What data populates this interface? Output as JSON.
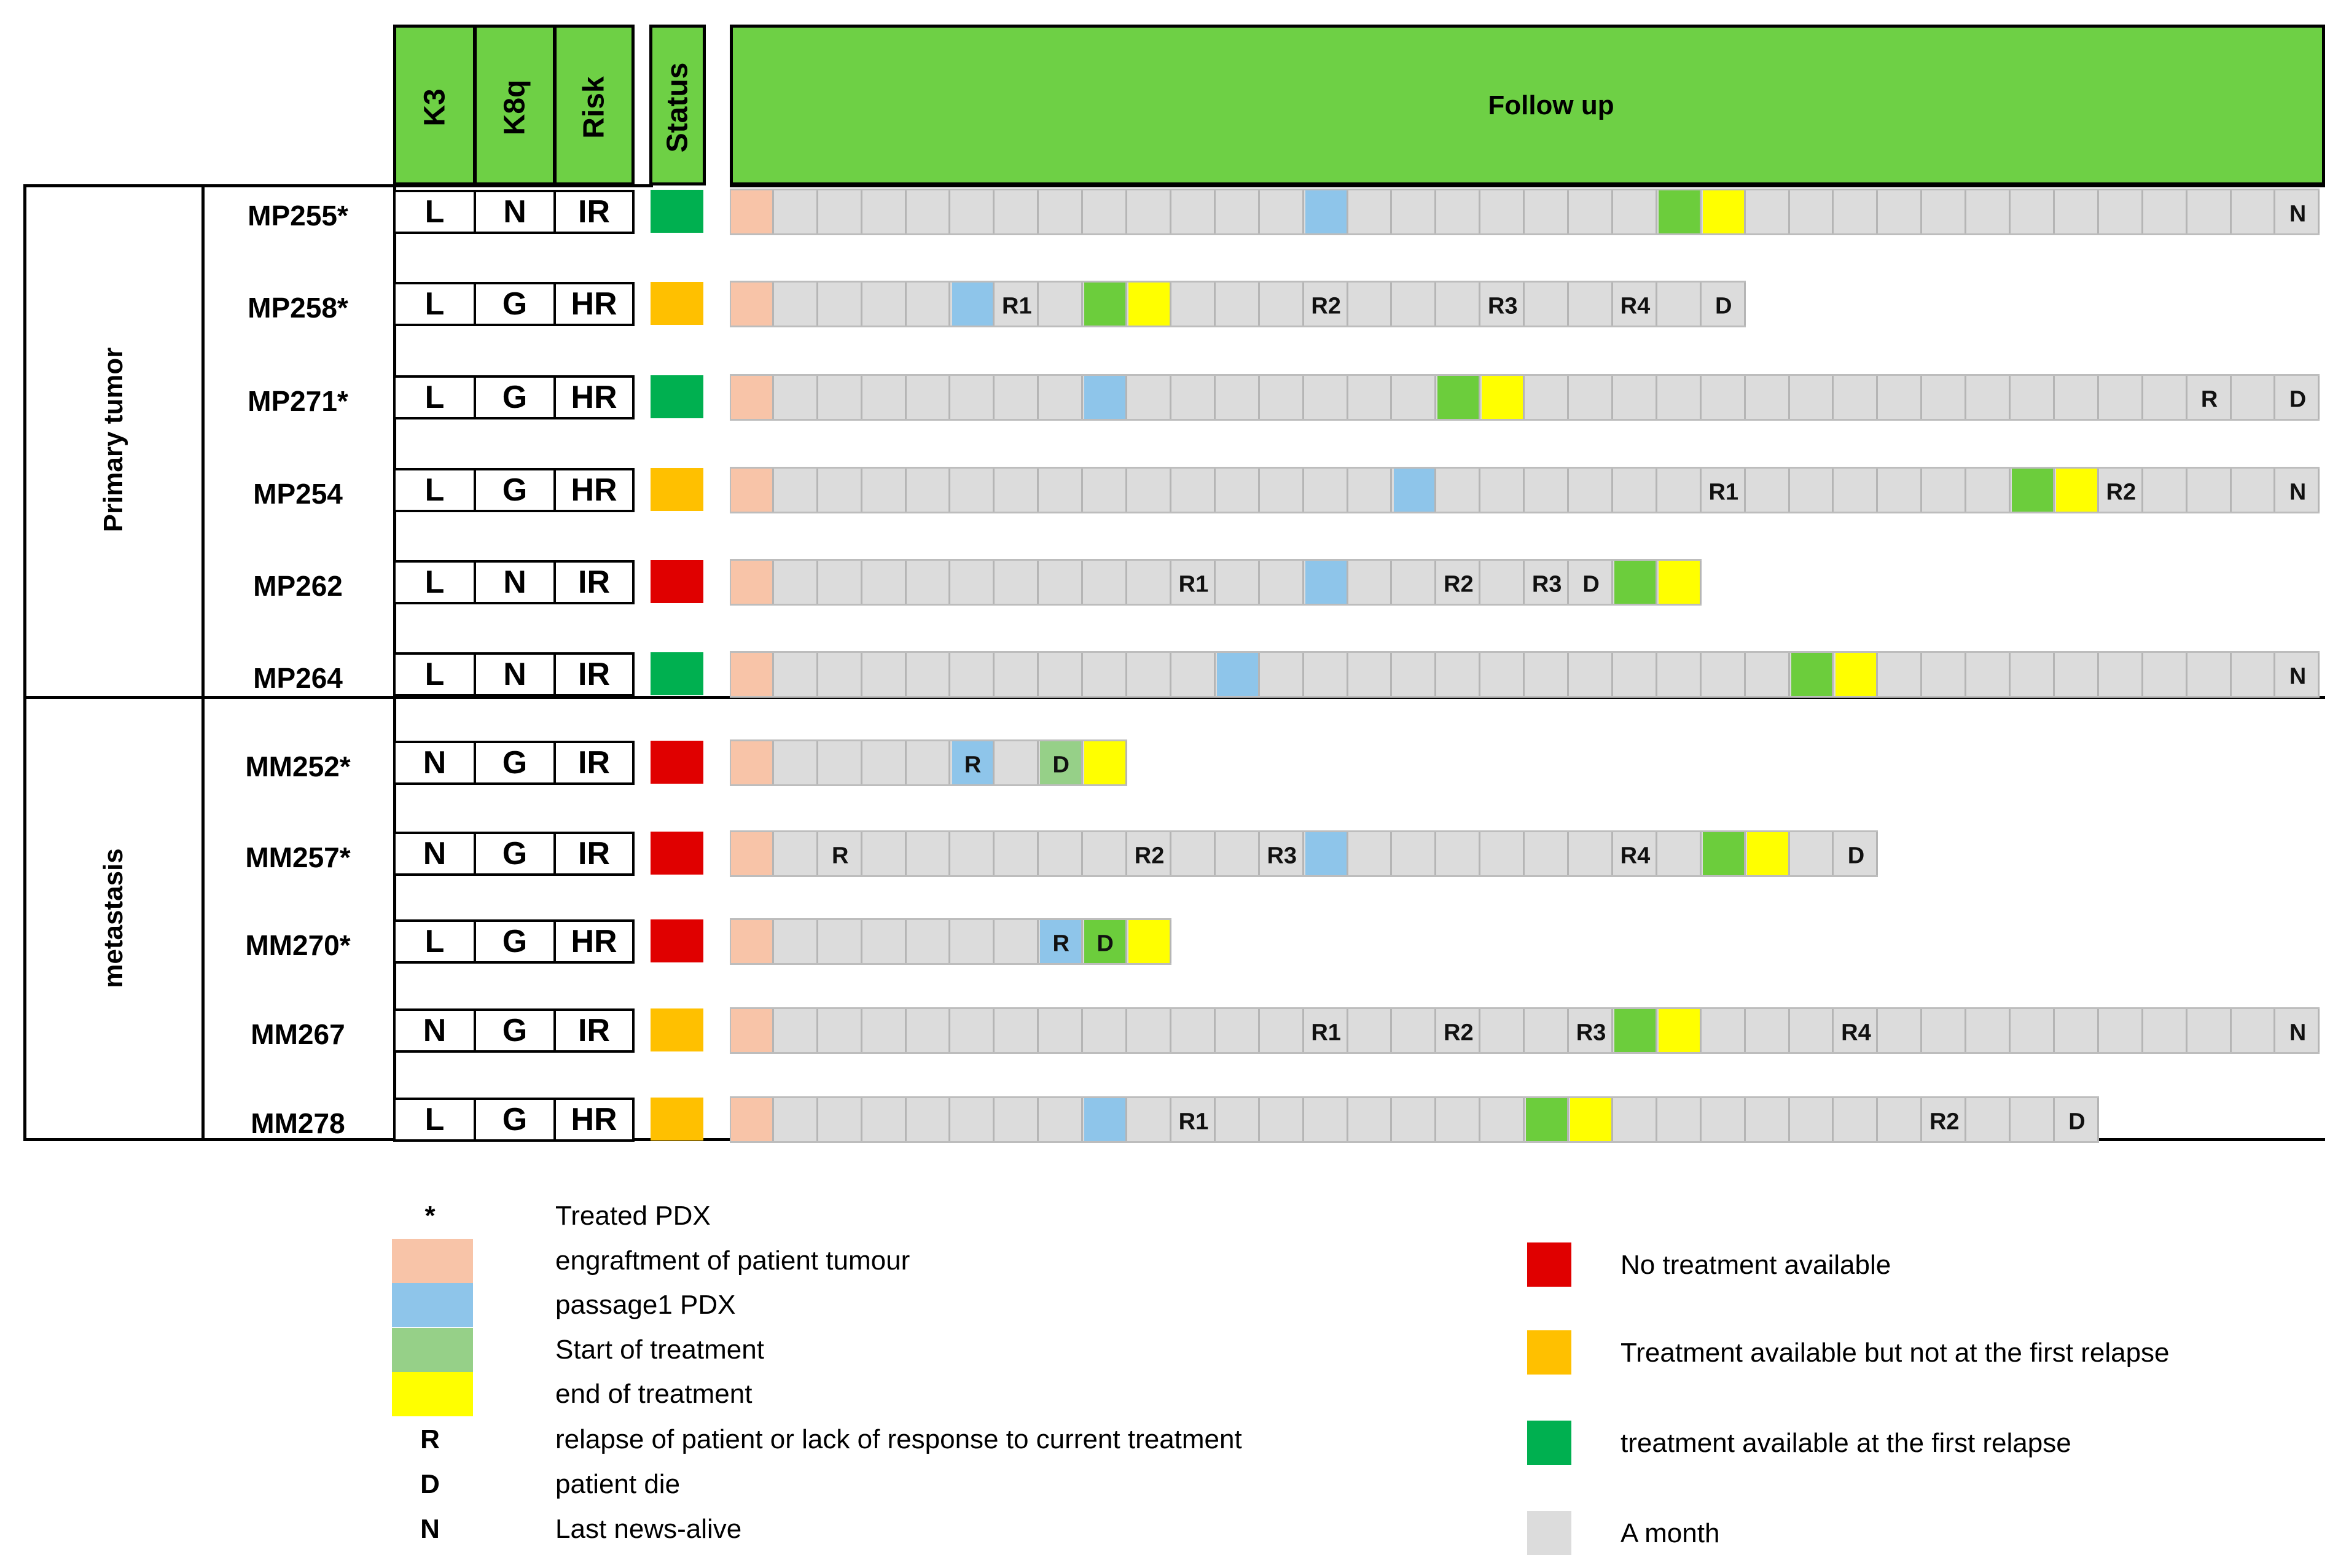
{
  "headers": {
    "k3": "K3",
    "k8q": "K8q",
    "risk": "Risk",
    "status": "Status",
    "follow_up": "Follow up"
  },
  "groups": {
    "primary": "Primary tumor",
    "metastasis": "metastasis"
  },
  "colors": {
    "header_green": "#6ed045",
    "engraftment": "#f8c4a8",
    "passage1": "#8ec5ea",
    "start_treatment_inrow": "#6ccd3c",
    "start_treatment_legend": "#96d088",
    "end_treatment": "#ffff00",
    "month": "#dcdcdc",
    "status_red": "#e00000",
    "status_orange": "#ffc000",
    "status_green": "#00b050"
  },
  "rows": [
    {
      "id": "MP255*",
      "group": "primary",
      "k3": "L",
      "k8q": "N",
      "risk": "IR",
      "status": "green",
      "months": 36,
      "cells": [
        {
          "m": 0,
          "t": "engraftment"
        },
        {
          "m": 13,
          "t": "passage1"
        },
        {
          "m": 21,
          "t": "start"
        },
        {
          "m": 22,
          "t": "end"
        }
      ],
      "labels": [
        {
          "m": 35,
          "text": "N"
        }
      ]
    },
    {
      "id": "MP258*",
      "group": "primary",
      "k3": "L",
      "k8q": "G",
      "risk": "HR",
      "status": "orange",
      "months": 23,
      "cells": [
        {
          "m": 0,
          "t": "engraftment"
        },
        {
          "m": 5,
          "t": "passage1"
        },
        {
          "m": 8,
          "t": "start"
        },
        {
          "m": 9,
          "t": "end"
        }
      ],
      "labels": [
        {
          "m": 6,
          "text": "R1"
        },
        {
          "m": 13,
          "text": "R2"
        },
        {
          "m": 17,
          "text": "R3"
        },
        {
          "m": 20,
          "text": "R4"
        },
        {
          "m": 22,
          "text": "D"
        }
      ]
    },
    {
      "id": "MP271*",
      "group": "primary",
      "k3": "L",
      "k8q": "G",
      "risk": "HR",
      "status": "green",
      "months": 36,
      "cells": [
        {
          "m": 0,
          "t": "engraftment"
        },
        {
          "m": 8,
          "t": "passage1"
        },
        {
          "m": 16,
          "t": "start"
        },
        {
          "m": 17,
          "t": "end"
        }
      ],
      "labels": [
        {
          "m": 33,
          "text": "R"
        },
        {
          "m": 35,
          "text": "D"
        }
      ]
    },
    {
      "id": "MP254",
      "group": "primary",
      "k3": "L",
      "k8q": "G",
      "risk": "HR",
      "status": "orange",
      "months": 36,
      "cells": [
        {
          "m": 0,
          "t": "engraftment"
        },
        {
          "m": 15,
          "t": "passage1"
        },
        {
          "m": 29,
          "t": "start"
        },
        {
          "m": 30,
          "t": "end"
        }
      ],
      "labels": [
        {
          "m": 22,
          "text": "R1"
        },
        {
          "m": 31,
          "text": "R2"
        },
        {
          "m": 35,
          "text": "N"
        }
      ]
    },
    {
      "id": "MP262",
      "group": "primary",
      "k3": "L",
      "k8q": "N",
      "risk": "IR",
      "status": "red",
      "months": 22,
      "cells": [
        {
          "m": 0,
          "t": "engraftment"
        },
        {
          "m": 13,
          "t": "passage1"
        },
        {
          "m": 20,
          "t": "start"
        },
        {
          "m": 21,
          "t": "end"
        }
      ],
      "labels": [
        {
          "m": 10,
          "text": "R1"
        },
        {
          "m": 16,
          "text": "R2"
        },
        {
          "m": 18,
          "text": "R3"
        },
        {
          "m": 19,
          "text": "D"
        }
      ]
    },
    {
      "id": "MP264",
      "group": "primary",
      "k3": "L",
      "k8q": "N",
      "risk": "IR",
      "status": "green",
      "months": 36,
      "cells": [
        {
          "m": 0,
          "t": "engraftment"
        },
        {
          "m": 11,
          "t": "passage1"
        },
        {
          "m": 24,
          "t": "start"
        },
        {
          "m": 25,
          "t": "end"
        }
      ],
      "labels": [
        {
          "m": 35,
          "text": "N"
        }
      ]
    },
    {
      "id": "MM252*",
      "group": "metastasis",
      "k3": "N",
      "k8q": "G",
      "risk": "IR",
      "status": "red",
      "months": 9,
      "cells": [
        {
          "m": 0,
          "t": "engraftment"
        },
        {
          "m": 5,
          "t": "passage1"
        },
        {
          "m": 7,
          "t": "start_light"
        },
        {
          "m": 8,
          "t": "end"
        }
      ],
      "labels": [
        {
          "m": 5,
          "text": "R"
        },
        {
          "m": 7,
          "text": "D"
        }
      ]
    },
    {
      "id": "MM257*",
      "group": "metastasis",
      "k3": "N",
      "k8q": "G",
      "risk": "IR",
      "status": "red",
      "months": 26,
      "cells": [
        {
          "m": 0,
          "t": "engraftment"
        },
        {
          "m": 13,
          "t": "passage1"
        },
        {
          "m": 22,
          "t": "start"
        },
        {
          "m": 23,
          "t": "end"
        }
      ],
      "labels": [
        {
          "m": 2,
          "text": "R"
        },
        {
          "m": 9,
          "text": "R2"
        },
        {
          "m": 12,
          "text": "R3"
        },
        {
          "m": 20,
          "text": "R4"
        },
        {
          "m": 25,
          "text": "D"
        }
      ]
    },
    {
      "id": "MM270*",
      "group": "metastasis",
      "k3": "L",
      "k8q": "G",
      "risk": "HR",
      "status": "red",
      "months": 10,
      "cells": [
        {
          "m": 0,
          "t": "engraftment"
        },
        {
          "m": 7,
          "t": "passage1"
        },
        {
          "m": 8,
          "t": "start"
        },
        {
          "m": 9,
          "t": "end"
        }
      ],
      "labels": [
        {
          "m": 7,
          "text": "R"
        },
        {
          "m": 8,
          "text": "D"
        }
      ]
    },
    {
      "id": "MM267",
      "group": "metastasis",
      "k3": "N",
      "k8q": "G",
      "risk": "IR",
      "status": "orange",
      "months": 36,
      "cells": [
        {
          "m": 0,
          "t": "engraftment"
        },
        {
          "m": 20,
          "t": "start"
        },
        {
          "m": 21,
          "t": "end"
        }
      ],
      "labels": [
        {
          "m": 13,
          "text": "R1"
        },
        {
          "m": 16,
          "text": "R2"
        },
        {
          "m": 19,
          "text": "R3"
        },
        {
          "m": 25,
          "text": "R4"
        },
        {
          "m": 35,
          "text": "N"
        }
      ]
    },
    {
      "id": "MM278",
      "group": "metastasis",
      "k3": "L",
      "k8q": "G",
      "risk": "HR",
      "status": "orange",
      "months": 31,
      "cells": [
        {
          "m": 0,
          "t": "engraftment"
        },
        {
          "m": 8,
          "t": "passage1"
        },
        {
          "m": 18,
          "t": "start"
        },
        {
          "m": 19,
          "t": "end"
        }
      ],
      "labels": [
        {
          "m": 10,
          "text": "R1"
        },
        {
          "m": 27,
          "text": "R2"
        },
        {
          "m": 30,
          "text": "D"
        }
      ]
    }
  ],
  "legend_left": [
    {
      "symbol": "*",
      "text": "Treated PDX"
    },
    {
      "swatch": "engraftment",
      "text": "engraftment of  patient tumour"
    },
    {
      "swatch": "passage1",
      "text": "passage1 PDX"
    },
    {
      "swatch": "start_treatment_legend",
      "text": "Start of treatment"
    },
    {
      "swatch": "end_treatment",
      "text": "end of treatment"
    },
    {
      "symbol": "R",
      "text": "relapse of patient or lack of response to current  treatment"
    },
    {
      "symbol": "D",
      "text": "patient die"
    },
    {
      "symbol": "N",
      "text": "Last news-alive"
    }
  ],
  "legend_right": [
    {
      "swatch": "status_red",
      "text": "No treatment available"
    },
    {
      "swatch": "status_orange",
      "text": "Treatment available but not  at the first relapse"
    },
    {
      "swatch": "status_green",
      "text": "treatment available at the first relapse"
    },
    {
      "swatch": "month",
      "text": "A month"
    }
  ]
}
